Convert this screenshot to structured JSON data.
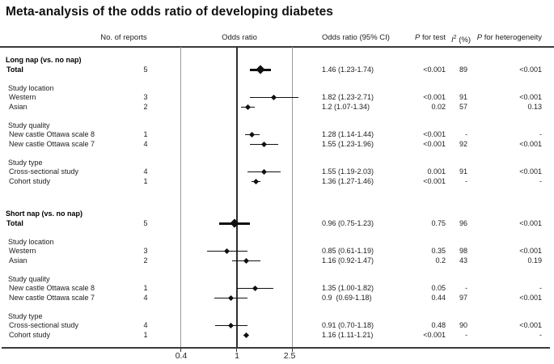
{
  "title": "Meta-analysis of the odds ratio of developing diabetes",
  "columns": {
    "no_of_reports": "No. of reports",
    "odds_ratio": "Odds ratio",
    "odds_ratio_ci": "Odds ratio (95% CI)",
    "p_test_italic": "P",
    "p_test_rest": " for test",
    "i2_italic": "I",
    "i2_sup": "2",
    "i2_rest": " (%)",
    "p_het_italic": "P",
    "p_het_rest": " for heterogeneity"
  },
  "colors": {
    "marker": "#101010",
    "reference_line": "#2e2e2e",
    "gridline": "#9b9b9b",
    "rule": "#3a3a3a"
  },
  "chart_data": {
    "type": "scatter",
    "subtype": "forest-plot",
    "xlabel": "Odds ratio",
    "xscale": "log",
    "xticks": [
      0.4,
      1,
      2.5
    ],
    "xtick_labels": [
      "0.4",
      "1",
      "2.5"
    ],
    "reference_line": 1,
    "xlim": [
      0.33,
      3.0
    ],
    "grid": "vertical-at-ticks",
    "rows": [
      {
        "type": "section",
        "label": "Long nap (vs. no nap)"
      },
      {
        "type": "summary",
        "label": "Total",
        "n": "5",
        "or": 1.46,
        "lo": 1.23,
        "hi": 1.74,
        "or_ci": "1.46 (1.23-1.74)",
        "p_test": "<0.001",
        "i2": "89",
        "p_het": "<0.001"
      },
      {
        "type": "spacer"
      },
      {
        "type": "group",
        "label": "Study location"
      },
      {
        "type": "data",
        "label": "Western",
        "n": "3",
        "or": 1.82,
        "lo": 1.23,
        "hi": 2.71,
        "or_ci": "1.82 (1.23-2.71)",
        "p_test": "<0.001",
        "i2": "91",
        "p_het": "<0.001"
      },
      {
        "type": "data",
        "label": "Asian",
        "n": "2",
        "or": 1.2,
        "lo": 1.07,
        "hi": 1.34,
        "or_ci": "1.2 (1.07-1.34)",
        "p_test": "0.02",
        "i2": "57",
        "p_het": "0.13"
      },
      {
        "type": "spacer"
      },
      {
        "type": "group",
        "label": "Study quality"
      },
      {
        "type": "data",
        "label": "New castle Ottawa scale 8",
        "n": "1",
        "or": 1.28,
        "lo": 1.14,
        "hi": 1.44,
        "or_ci": "1.28 (1.14-1.44)",
        "p_test": "<0.001",
        "i2": "-",
        "p_het": "-"
      },
      {
        "type": "data",
        "label": "New castle Ottawa scale 7",
        "n": "4",
        "or": 1.55,
        "lo": 1.23,
        "hi": 1.96,
        "or_ci": "1.55 (1.23-1.96)",
        "p_test": "<0.001",
        "i2": "92",
        "p_het": "<0.001"
      },
      {
        "type": "spacer"
      },
      {
        "type": "group",
        "label": "Study type"
      },
      {
        "type": "data",
        "label": "Cross-sectional study",
        "n": "4",
        "or": 1.55,
        "lo": 1.19,
        "hi": 2.03,
        "or_ci": "1.55 (1.19-2.03)",
        "p_test": "0.001",
        "i2": "91",
        "p_het": "<0.001"
      },
      {
        "type": "data",
        "label": "Cohort study",
        "n": "1",
        "or": 1.36,
        "lo": 1.27,
        "hi": 1.46,
        "or_ci": "1.36 (1.27-1.46)",
        "p_test": "<0.001",
        "i2": "-",
        "p_het": "-"
      },
      {
        "type": "bigspacer"
      },
      {
        "type": "section",
        "label": "Short nap (vs. no nap)"
      },
      {
        "type": "summary",
        "label": "Total",
        "n": "5",
        "or": 0.96,
        "lo": 0.75,
        "hi": 1.23,
        "or_ci": "0.96 (0.75-1.23)",
        "p_test": "0.75",
        "i2": "96",
        "p_het": "<0.001"
      },
      {
        "type": "spacer"
      },
      {
        "type": "group",
        "label": "Study location"
      },
      {
        "type": "data",
        "label": "Western",
        "n": "3",
        "or": 0.85,
        "lo": 0.61,
        "hi": 1.19,
        "or_ci": "0.85 (0.61-1.19)",
        "p_test": "0.35",
        "i2": "98",
        "p_het": "<0.001"
      },
      {
        "type": "data",
        "label": "Asian",
        "n": "2",
        "or": 1.16,
        "lo": 0.92,
        "hi": 1.47,
        "or_ci": "1.16 (0.92-1.47)",
        "p_test": "0.2",
        "i2": "43",
        "p_het": "0.19"
      },
      {
        "type": "spacer"
      },
      {
        "type": "group",
        "label": "Study quality"
      },
      {
        "type": "data",
        "label": "New castle Ottawa scale 8",
        "n": "1",
        "or": 1.35,
        "lo": 1.0,
        "hi": 1.82,
        "or_ci": "1.35 (1.00-1.82)",
        "p_test": "0.05",
        "i2": "-",
        "p_het": "-"
      },
      {
        "type": "data",
        "label": "New castle Ottawa scale 7",
        "n": "4",
        "or": 0.9,
        "lo": 0.69,
        "hi": 1.18,
        "or_ci": "0.9  (0.69-1.18)",
        "p_test": "0.44",
        "i2": "97",
        "p_het": "<0.001"
      },
      {
        "type": "spacer"
      },
      {
        "type": "group",
        "label": "Study type"
      },
      {
        "type": "data",
        "label": "Cross-sectional study",
        "n": "4",
        "or": 0.91,
        "lo": 0.7,
        "hi": 1.18,
        "or_ci": "0.91 (0.70-1.18)",
        "p_test": "0.48",
        "i2": "90",
        "p_het": "<0.001"
      },
      {
        "type": "data",
        "label": "Cohort study",
        "n": "1",
        "or": 1.16,
        "lo": 1.11,
        "hi": 1.21,
        "or_ci": "1.16 (1.11-1.21)",
        "p_test": "<0.001",
        "i2": "-",
        "p_het": "-"
      }
    ]
  }
}
